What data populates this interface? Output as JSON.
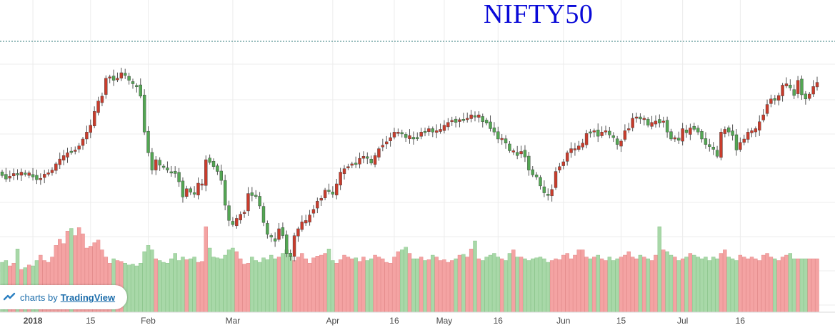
{
  "chart_data": {
    "type": "candlestick",
    "title": "NIFTY50",
    "x_tick_labels": [
      "2018",
      "15",
      "Feb",
      "Mar",
      "Apr",
      "16",
      "May",
      "16",
      "Jun",
      "15",
      "Jul",
      "16"
    ],
    "grid": true,
    "volume_colors": {
      "up": "#a8d8a8",
      "down": "#f4a3a3"
    },
    "candle_colors": {
      "up": "#53a653",
      "down": "#c83c2c",
      "wick": "#555555"
    },
    "price_path": [
      213,
      218,
      214,
      210,
      212,
      208,
      211,
      209,
      215,
      219,
      217,
      211,
      209,
      205,
      196,
      189,
      184,
      180,
      178,
      176,
      170,
      160,
      150,
      140,
      120,
      105,
      98,
      72,
      70,
      75,
      72,
      64,
      68,
      75,
      80,
      84,
      98,
      150,
      180,
      205,
      190,
      198,
      200,
      205,
      209,
      210,
      222,
      244,
      232,
      237,
      240,
      224,
      225,
      190,
      194,
      200,
      207,
      220,
      256,
      278,
      284,
      275,
      269,
      266,
      239,
      242,
      243,
      257,
      281,
      298,
      302,
      308,
      290,
      300,
      326,
      330,
      300,
      290,
      280,
      278,
      270,
      262,
      250,
      246,
      234,
      236,
      240,
      225,
      208,
      203,
      200,
      196,
      197,
      188,
      185,
      188,
      195,
      184,
      174,
      169,
      164,
      158,
      150,
      150,
      152,
      158,
      155,
      160,
      158,
      150,
      150,
      145,
      150,
      148,
      146,
      140,
      136,
      133,
      136,
      132,
      132,
      130,
      125,
      127,
      125,
      135,
      137,
      145,
      150,
      160,
      159,
      166,
      177,
      177,
      184,
      178,
      186,
      205,
      212,
      215,
      228,
      238,
      240,
      233,
      207,
      200,
      193,
      180,
      174,
      174,
      170,
      166,
      152,
      150,
      148,
      156,
      150,
      148,
      154,
      158,
      168,
      163,
      148,
      145,
      130,
      128,
      131,
      130,
      140,
      136,
      134,
      137,
      134,
      150,
      160,
      158,
      162,
      145,
      151,
      144,
      146,
      150,
      160,
      168,
      171,
      175,
      185,
      150,
      146,
      150,
      155,
      176,
      165,
      160,
      150,
      148,
      145,
      135,
      125,
      110,
      102,
      104,
      97,
      82,
      80,
      86,
      97,
      75,
      96,
      102,
      95,
      84,
      78
    ],
    "tick_price_index": [
      8,
      23,
      38,
      60,
      86,
      102,
      115,
      129,
      146,
      161,
      177,
      192
    ],
    "volume_levels": [
      0.56,
      0.58,
      0.52,
      0.55,
      0.71,
      0.48,
      0.5,
      0.53,
      0.52,
      0.58,
      0.64,
      0.58,
      0.56,
      0.62,
      0.75,
      0.82,
      0.77,
      0.91,
      0.94,
      0.86,
      0.95,
      0.88,
      0.72,
      0.74,
      0.78,
      0.81,
      0.7,
      0.62,
      0.55,
      0.6,
      0.58,
      0.57,
      0.55,
      0.53,
      0.54,
      0.52,
      0.55,
      0.68,
      0.75,
      0.7,
      0.6,
      0.58,
      0.56,
      0.55,
      0.6,
      0.66,
      0.58,
      0.62,
      0.59,
      0.6,
      0.62,
      0.56,
      0.57,
      0.96,
      0.72,
      0.62,
      0.61,
      0.6,
      0.64,
      0.7,
      0.72,
      0.68,
      0.6,
      0.54,
      0.55,
      0.62,
      0.58,
      0.56,
      0.61,
      0.59,
      0.64,
      0.6,
      0.62,
      0.66,
      0.7,
      0.63,
      0.58,
      0.62,
      0.66,
      0.6,
      0.55,
      0.61,
      0.63,
      0.64,
      0.66,
      0.71,
      0.58,
      0.55,
      0.59,
      0.64,
      0.62,
      0.6,
      0.61,
      0.57,
      0.62,
      0.58,
      0.6,
      0.64,
      0.62,
      0.6,
      0.56,
      0.55,
      0.62,
      0.68,
      0.7,
      0.73,
      0.66,
      0.6,
      0.6,
      0.62,
      0.58,
      0.59,
      0.64,
      0.62,
      0.58,
      0.59,
      0.56,
      0.58,
      0.6,
      0.64,
      0.65,
      0.62,
      0.71,
      0.8,
      0.6,
      0.58,
      0.62,
      0.64,
      0.66,
      0.62,
      0.6,
      0.58,
      0.66,
      0.7,
      0.62,
      0.62,
      0.6,
      0.58,
      0.6,
      0.61,
      0.62,
      0.6,
      0.56,
      0.58,
      0.6,
      0.59,
      0.64,
      0.66,
      0.6,
      0.64,
      0.7,
      0.7,
      0.62,
      0.6,
      0.62,
      0.64,
      0.6,
      0.58,
      0.62,
      0.58,
      0.6,
      0.62,
      0.64,
      0.68,
      0.62,
      0.6,
      0.64,
      0.62,
      0.6,
      0.58,
      0.64,
      0.96,
      0.7,
      0.68,
      0.64,
      0.62,
      0.58,
      0.6,
      0.62,
      0.66,
      0.64,
      0.62,
      0.6,
      0.62,
      0.58,
      0.62,
      0.6,
      0.66,
      0.7,
      0.62,
      0.6,
      0.58,
      0.64,
      0.62,
      0.6,
      0.62,
      0.6,
      0.58,
      0.64,
      0.66,
      0.62,
      0.6,
      0.58,
      0.62,
      0.64,
      0.66
    ]
  },
  "watermark": {
    "prefix": "charts by",
    "link": "TradingView"
  }
}
